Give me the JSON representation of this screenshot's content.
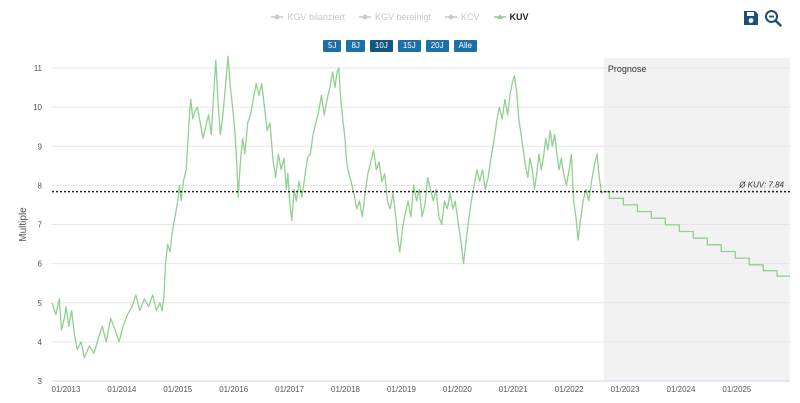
{
  "legend": [
    {
      "label": "KGV bilanziert",
      "active": false
    },
    {
      "label": "KGV bereinigt",
      "active": false
    },
    {
      "label": "KCV",
      "active": false
    },
    {
      "label": "KUV",
      "active": true
    }
  ],
  "ranges": [
    {
      "label": "5J",
      "active": false
    },
    {
      "label": "8J",
      "active": false
    },
    {
      "label": "10J",
      "active": true
    },
    {
      "label": "15J",
      "active": false
    },
    {
      "label": "20J",
      "active": false
    },
    {
      "label": "Alle",
      "active": false
    }
  ],
  "tools": {
    "save_icon": "floppy-disk-icon",
    "zoom_icon": "zoom-out-icon"
  },
  "colors": {
    "series": "#90d090",
    "forecast_bg": "#f2f2f2",
    "button": "#1e6fa8",
    "avg_line": "#222222"
  },
  "chart_data": {
    "type": "line",
    "ylabel": "Multiple",
    "ylim": [
      3,
      11
    ],
    "yticks": [
      3,
      4,
      5,
      6,
      7,
      8,
      9,
      10,
      11
    ],
    "xlim": [
      2012.75,
      2025.95
    ],
    "xticks": [
      {
        "value": 2013,
        "label": "01/2013"
      },
      {
        "value": 2014,
        "label": "01/2014"
      },
      {
        "value": 2015,
        "label": "01/2015"
      },
      {
        "value": 2016,
        "label": "01/2016"
      },
      {
        "value": 2017,
        "label": "01/2017"
      },
      {
        "value": 2018,
        "label": "01/2018"
      },
      {
        "value": 2019,
        "label": "01/2019"
      },
      {
        "value": 2020,
        "label": "01/2020"
      },
      {
        "value": 2021,
        "label": "01/2021"
      },
      {
        "value": 2022,
        "label": "01/2022"
      },
      {
        "value": 2023,
        "label": "01/2023"
      },
      {
        "value": 2024,
        "label": "01/2024"
      },
      {
        "value": 2025,
        "label": "01/2025"
      }
    ],
    "forecast": {
      "label": "Prognose",
      "start": 2022.62
    },
    "average": {
      "label": "Ø KUV: 7.84",
      "value": 7.84
    },
    "series": [
      {
        "name": "KUV",
        "points": [
          [
            2012.75,
            5.0
          ],
          [
            2012.82,
            4.7
          ],
          [
            2012.88,
            5.1
          ],
          [
            2012.92,
            4.3
          ],
          [
            2012.97,
            4.6
          ],
          [
            2013.0,
            4.9
          ],
          [
            2013.05,
            4.4
          ],
          [
            2013.1,
            4.8
          ],
          [
            2013.15,
            4.2
          ],
          [
            2013.2,
            3.8
          ],
          [
            2013.27,
            4.0
          ],
          [
            2013.33,
            3.6
          ],
          [
            2013.42,
            3.9
          ],
          [
            2013.5,
            3.7
          ],
          [
            2013.58,
            4.1
          ],
          [
            2013.65,
            4.4
          ],
          [
            2013.72,
            4.0
          ],
          [
            2013.8,
            4.6
          ],
          [
            2013.88,
            4.3
          ],
          [
            2013.95,
            4.0
          ],
          [
            2014.02,
            4.4
          ],
          [
            2014.1,
            4.7
          ],
          [
            2014.18,
            4.9
          ],
          [
            2014.25,
            5.2
          ],
          [
            2014.32,
            4.8
          ],
          [
            2014.4,
            5.1
          ],
          [
            2014.48,
            4.9
          ],
          [
            2014.55,
            5.2
          ],
          [
            2014.62,
            4.8
          ],
          [
            2014.68,
            5.0
          ],
          [
            2014.72,
            4.8
          ],
          [
            2014.75,
            5.1
          ],
          [
            2014.78,
            6.0
          ],
          [
            2014.82,
            6.5
          ],
          [
            2014.86,
            6.3
          ],
          [
            2014.9,
            6.8
          ],
          [
            2014.95,
            7.2
          ],
          [
            2015.0,
            7.6
          ],
          [
            2015.03,
            8.0
          ],
          [
            2015.06,
            7.6
          ],
          [
            2015.1,
            8.1
          ],
          [
            2015.15,
            8.4
          ],
          [
            2015.2,
            9.6
          ],
          [
            2015.23,
            10.2
          ],
          [
            2015.27,
            9.7
          ],
          [
            2015.31,
            9.9
          ],
          [
            2015.35,
            10.0
          ],
          [
            2015.4,
            9.6
          ],
          [
            2015.45,
            9.2
          ],
          [
            2015.5,
            9.5
          ],
          [
            2015.55,
            9.8
          ],
          [
            2015.6,
            9.3
          ],
          [
            2015.65,
            10.5
          ],
          [
            2015.68,
            11.2
          ],
          [
            2015.72,
            10.1
          ],
          [
            2015.76,
            9.3
          ],
          [
            2015.8,
            9.7
          ],
          [
            2015.85,
            10.5
          ],
          [
            2015.9,
            11.3
          ],
          [
            2015.94,
            10.5
          ],
          [
            2015.98,
            10.0
          ],
          [
            2016.02,
            9.4
          ],
          [
            2016.05,
            8.7
          ],
          [
            2016.08,
            7.7
          ],
          [
            2016.12,
            8.6
          ],
          [
            2016.16,
            9.2
          ],
          [
            2016.2,
            8.8
          ],
          [
            2016.25,
            9.6
          ],
          [
            2016.3,
            9.8
          ],
          [
            2016.35,
            10.2
          ],
          [
            2016.4,
            10.6
          ],
          [
            2016.45,
            10.3
          ],
          [
            2016.5,
            10.6
          ],
          [
            2016.55,
            10.0
          ],
          [
            2016.6,
            9.4
          ],
          [
            2016.65,
            9.6
          ],
          [
            2016.7,
            8.7
          ],
          [
            2016.75,
            8.2
          ],
          [
            2016.8,
            8.8
          ],
          [
            2016.85,
            8.4
          ],
          [
            2016.9,
            8.7
          ],
          [
            2016.94,
            7.9
          ],
          [
            2016.97,
            8.3
          ],
          [
            2017.0,
            7.6
          ],
          [
            2017.04,
            7.1
          ],
          [
            2017.08,
            7.9
          ],
          [
            2017.12,
            7.6
          ],
          [
            2017.17,
            8.1
          ],
          [
            2017.22,
            7.7
          ],
          [
            2017.27,
            8.2
          ],
          [
            2017.32,
            8.7
          ],
          [
            2017.37,
            8.8
          ],
          [
            2017.42,
            9.3
          ],
          [
            2017.47,
            9.6
          ],
          [
            2017.52,
            9.9
          ],
          [
            2017.57,
            10.3
          ],
          [
            2017.62,
            9.8
          ],
          [
            2017.67,
            10.2
          ],
          [
            2017.72,
            10.5
          ],
          [
            2017.77,
            10.9
          ],
          [
            2017.81,
            10.5
          ],
          [
            2017.85,
            10.9
          ],
          [
            2017.88,
            11.0
          ],
          [
            2017.91,
            10.3
          ],
          [
            2017.95,
            9.7
          ],
          [
            2017.99,
            9.2
          ],
          [
            2018.02,
            8.6
          ],
          [
            2018.06,
            8.3
          ],
          [
            2018.1,
            8.1
          ],
          [
            2018.15,
            7.8
          ],
          [
            2018.2,
            7.4
          ],
          [
            2018.25,
            7.6
          ],
          [
            2018.3,
            7.2
          ],
          [
            2018.35,
            7.8
          ],
          [
            2018.4,
            8.3
          ],
          [
            2018.45,
            8.6
          ],
          [
            2018.5,
            8.9
          ],
          [
            2018.55,
            8.4
          ],
          [
            2018.6,
            8.6
          ],
          [
            2018.65,
            8.1
          ],
          [
            2018.7,
            8.3
          ],
          [
            2018.75,
            7.6
          ],
          [
            2018.8,
            7.4
          ],
          [
            2018.85,
            7.8
          ],
          [
            2018.9,
            7.2
          ],
          [
            2018.94,
            6.6
          ],
          [
            2018.97,
            6.3
          ],
          [
            2019.02,
            6.9
          ],
          [
            2019.07,
            7.3
          ],
          [
            2019.12,
            7.6
          ],
          [
            2019.17,
            7.2
          ],
          [
            2019.22,
            8.0
          ],
          [
            2019.27,
            7.6
          ],
          [
            2019.32,
            7.9
          ],
          [
            2019.37,
            7.2
          ],
          [
            2019.42,
            7.5
          ],
          [
            2019.47,
            8.2
          ],
          [
            2019.52,
            7.9
          ],
          [
            2019.57,
            7.6
          ],
          [
            2019.62,
            7.9
          ],
          [
            2019.67,
            7.2
          ],
          [
            2019.72,
            7.0
          ],
          [
            2019.77,
            7.6
          ],
          [
            2019.82,
            7.4
          ],
          [
            2019.87,
            7.8
          ],
          [
            2019.92,
            7.4
          ],
          [
            2019.96,
            7.6
          ],
          [
            2020.02,
            7.0
          ],
          [
            2020.07,
            6.5
          ],
          [
            2020.11,
            6.0
          ],
          [
            2020.15,
            6.5
          ],
          [
            2020.2,
            7.1
          ],
          [
            2020.25,
            7.6
          ],
          [
            2020.3,
            8.0
          ],
          [
            2020.35,
            8.4
          ],
          [
            2020.4,
            8.1
          ],
          [
            2020.45,
            8.4
          ],
          [
            2020.5,
            7.9
          ],
          [
            2020.55,
            8.2
          ],
          [
            2020.6,
            8.7
          ],
          [
            2020.65,
            9.1
          ],
          [
            2020.7,
            9.6
          ],
          [
            2020.75,
            10.0
          ],
          [
            2020.8,
            9.7
          ],
          [
            2020.85,
            10.2
          ],
          [
            2020.9,
            9.8
          ],
          [
            2020.94,
            10.3
          ],
          [
            2020.98,
            10.6
          ],
          [
            2021.02,
            10.8
          ],
          [
            2021.06,
            10.4
          ],
          [
            2021.1,
            9.7
          ],
          [
            2021.14,
            9.3
          ],
          [
            2021.18,
            8.9
          ],
          [
            2021.22,
            8.5
          ],
          [
            2021.26,
            8.2
          ],
          [
            2021.3,
            8.7
          ],
          [
            2021.34,
            8.4
          ],
          [
            2021.38,
            7.9
          ],
          [
            2021.42,
            8.3
          ],
          [
            2021.46,
            8.8
          ],
          [
            2021.5,
            8.4
          ],
          [
            2021.54,
            8.7
          ],
          [
            2021.58,
            9.2
          ],
          [
            2021.62,
            8.9
          ],
          [
            2021.66,
            9.4
          ],
          [
            2021.7,
            9.0
          ],
          [
            2021.74,
            9.3
          ],
          [
            2021.78,
            8.8
          ],
          [
            2021.82,
            8.4
          ],
          [
            2021.86,
            8.7
          ],
          [
            2021.9,
            8.3
          ],
          [
            2021.95,
            8.0
          ],
          [
            2022.0,
            8.4
          ],
          [
            2022.04,
            8.8
          ],
          [
            2022.08,
            7.6
          ],
          [
            2022.12,
            7.2
          ],
          [
            2022.16,
            6.6
          ],
          [
            2022.2,
            7.1
          ],
          [
            2022.25,
            7.6
          ],
          [
            2022.3,
            7.9
          ],
          [
            2022.35,
            7.6
          ],
          [
            2022.4,
            8.1
          ],
          [
            2022.45,
            8.5
          ],
          [
            2022.5,
            8.8
          ],
          [
            2022.54,
            8.2
          ],
          [
            2022.58,
            7.8
          ],
          [
            2022.62,
            7.84
          ]
        ]
      },
      {
        "name": "KUV",
        "points": [
          [
            2022.62,
            7.84
          ],
          [
            2022.72,
            7.84
          ],
          [
            2022.72,
            7.67
          ],
          [
            2022.97,
            7.67
          ],
          [
            2022.97,
            7.5
          ],
          [
            2023.22,
            7.5
          ],
          [
            2023.22,
            7.33
          ],
          [
            2023.47,
            7.33
          ],
          [
            2023.47,
            7.16
          ],
          [
            2023.72,
            7.16
          ],
          [
            2023.72,
            6.99
          ],
          [
            2023.97,
            6.99
          ],
          [
            2023.97,
            6.82
          ],
          [
            2024.22,
            6.82
          ],
          [
            2024.22,
            6.65
          ],
          [
            2024.47,
            6.65
          ],
          [
            2024.47,
            6.48
          ],
          [
            2024.72,
            6.48
          ],
          [
            2024.72,
            6.31
          ],
          [
            2024.97,
            6.31
          ],
          [
            2024.97,
            6.14
          ],
          [
            2025.22,
            6.14
          ],
          [
            2025.22,
            5.97
          ],
          [
            2025.47,
            5.97
          ],
          [
            2025.47,
            5.82
          ],
          [
            2025.72,
            5.82
          ],
          [
            2025.72,
            5.68
          ],
          [
            2025.95,
            5.68
          ]
        ]
      }
    ]
  }
}
